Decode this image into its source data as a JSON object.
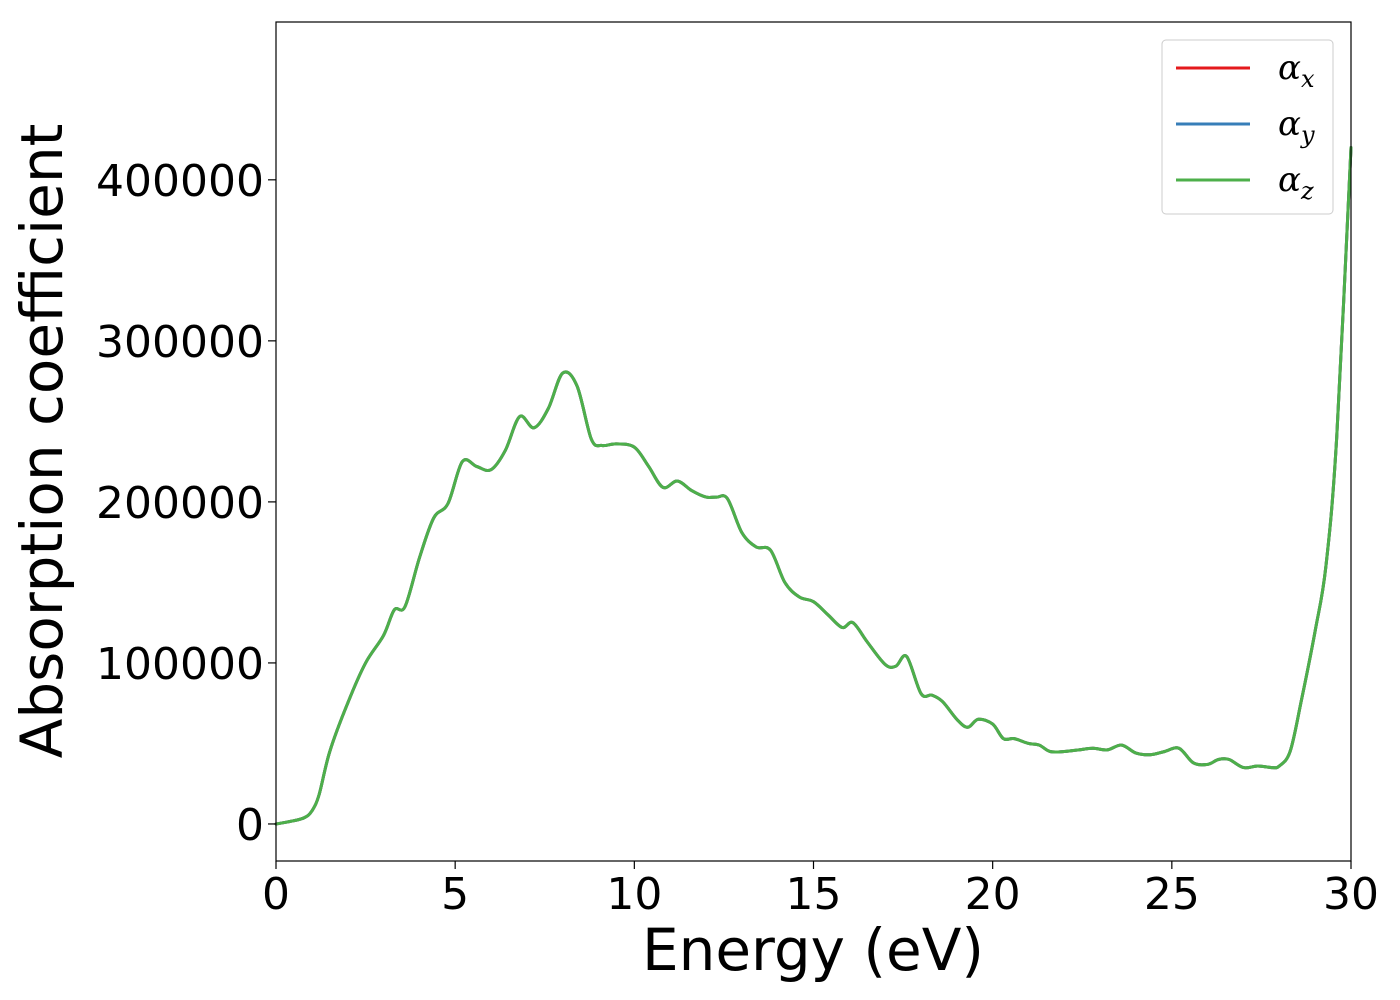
{
  "chart_data": {
    "type": "line",
    "title": "",
    "xlabel": "Energy (eV)",
    "ylabel": "Absorption coefficient",
    "xlim": [
      0,
      30
    ],
    "ylim": [
      -23000,
      498000
    ],
    "xticks": [
      0,
      5,
      10,
      15,
      20,
      25,
      30
    ],
    "yticks": [
      0,
      100000,
      200000,
      300000,
      400000
    ],
    "xtick_labels": [
      "0",
      "5",
      "10",
      "15",
      "20",
      "25",
      "30"
    ],
    "ytick_labels": [
      "0",
      "100000",
      "200000",
      "300000",
      "400000"
    ],
    "grid": false,
    "legend_position": "top-right",
    "x": [
      0,
      0.5,
      0.8,
      1.0,
      1.2,
      1.5,
      2.0,
      2.5,
      3.0,
      3.3,
      3.6,
      4.0,
      4.4,
      4.8,
      5.2,
      5.6,
      6.0,
      6.4,
      6.8,
      7.2,
      7.6,
      8.0,
      8.4,
      8.8,
      9.1,
      9.5,
      10.0,
      10.4,
      10.8,
      11.2,
      11.6,
      12.0,
      12.3,
      12.6,
      13.0,
      13.4,
      13.8,
      14.2,
      14.6,
      15.0,
      15.4,
      15.8,
      16.1,
      16.5,
      17.0,
      17.3,
      17.6,
      18.0,
      18.3,
      18.6,
      19.0,
      19.3,
      19.6,
      20.0,
      20.3,
      20.6,
      21.0,
      21.3,
      21.6,
      22.0,
      22.4,
      22.8,
      23.2,
      23.6,
      24.0,
      24.4,
      24.8,
      25.2,
      25.6,
      26.0,
      26.3,
      26.6,
      27.0,
      27.4,
      27.8,
      28.0,
      28.3,
      28.6,
      29.0,
      29.3,
      29.6,
      30.0
    ],
    "series": [
      {
        "name": "α_x",
        "label": "α",
        "subscript": "x",
        "color": "#e41a1c",
        "values": [
          0,
          2000,
          4000,
          8000,
          18000,
          45000,
          75000,
          100000,
          117000,
          133000,
          135000,
          165000,
          190000,
          199000,
          225000,
          222000,
          220000,
          232000,
          253000,
          246000,
          258000,
          280000,
          272000,
          239000,
          235000,
          236000,
          234000,
          222000,
          209000,
          213000,
          207000,
          203000,
          203000,
          202000,
          181000,
          172000,
          170000,
          150000,
          141000,
          138000,
          130000,
          122000,
          125000,
          113000,
          99000,
          98000,
          104000,
          81000,
          80000,
          76000,
          65000,
          60000,
          65000,
          62000,
          53000,
          53000,
          50000,
          49000,
          45000,
          45000,
          46000,
          47000,
          46000,
          49000,
          44000,
          43000,
          45000,
          47000,
          38000,
          37000,
          40000,
          40000,
          35000,
          36000,
          35000,
          36000,
          45000,
          75000,
          120000,
          160000,
          240000,
          420000
        ]
      },
      {
        "name": "α_y",
        "label": "α",
        "subscript": "y",
        "color": "#377eb8",
        "values": [
          0,
          2000,
          4000,
          8000,
          18000,
          45000,
          75000,
          100000,
          117000,
          133000,
          135000,
          165000,
          190000,
          199000,
          225000,
          222000,
          220000,
          232000,
          253000,
          246000,
          258000,
          280000,
          272000,
          239000,
          235000,
          236000,
          234000,
          222000,
          209000,
          213000,
          207000,
          203000,
          203000,
          202000,
          181000,
          172000,
          170000,
          150000,
          141000,
          138000,
          130000,
          122000,
          125000,
          113000,
          99000,
          98000,
          104000,
          81000,
          80000,
          76000,
          65000,
          60000,
          65000,
          62000,
          53000,
          53000,
          50000,
          49000,
          45000,
          45000,
          46000,
          47000,
          46000,
          49000,
          44000,
          43000,
          45000,
          47000,
          38000,
          37000,
          40000,
          40000,
          35000,
          36000,
          35000,
          36000,
          45000,
          75000,
          120000,
          160000,
          240000,
          420000
        ]
      },
      {
        "name": "α_z",
        "label": "α",
        "subscript": "z",
        "color": "#4daf4a",
        "values": [
          0,
          2000,
          4000,
          8000,
          18000,
          45000,
          75000,
          100000,
          117000,
          133000,
          135000,
          165000,
          190000,
          199000,
          225000,
          222000,
          220000,
          232000,
          253000,
          246000,
          258000,
          280000,
          272000,
          239000,
          235000,
          236000,
          234000,
          222000,
          209000,
          213000,
          207000,
          203000,
          203000,
          202000,
          181000,
          172000,
          170000,
          150000,
          141000,
          138000,
          130000,
          122000,
          125000,
          113000,
          99000,
          98000,
          104000,
          81000,
          80000,
          76000,
          65000,
          60000,
          65000,
          62000,
          53000,
          53000,
          50000,
          49000,
          45000,
          45000,
          46000,
          47000,
          46000,
          49000,
          44000,
          43000,
          45000,
          47000,
          38000,
          37000,
          40000,
          40000,
          35000,
          36000,
          35000,
          36000,
          45000,
          75000,
          120000,
          160000,
          240000,
          420000
        ]
      }
    ]
  }
}
